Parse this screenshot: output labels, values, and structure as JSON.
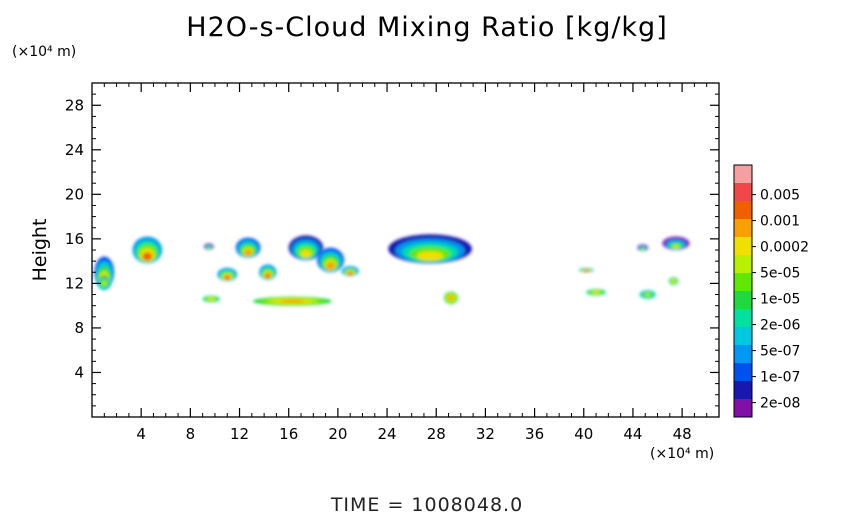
{
  "chart_data": {
    "type": "heatmap",
    "title": "H2O-s-Cloud Mixing Ratio [kg/kg]",
    "xlabel": "",
    "ylabel": "Height",
    "x_units": "(×10⁴ m)",
    "y_units": "(×10⁴ m)",
    "xlim": [
      0,
      51
    ],
    "ylim": [
      0,
      30
    ],
    "x_ticks": [
      4,
      8,
      12,
      16,
      20,
      24,
      28,
      32,
      36,
      40,
      44,
      48
    ],
    "y_ticks": [
      4,
      8,
      12,
      16,
      20,
      24,
      28
    ],
    "x_tick_labels": [
      "4",
      "8",
      "12",
      "16",
      "20",
      "24",
      "28",
      "32",
      "36",
      "40",
      "44",
      "48"
    ],
    "y_tick_labels": [
      "4",
      "8",
      "12",
      "16",
      "20",
      "24",
      "28"
    ],
    "colorbar": {
      "levels": [
        "0.005",
        "0.001",
        "0.0002",
        "5e-05",
        "1e-05",
        "2e-06",
        "5e-07",
        "1e-07",
        "2e-08"
      ],
      "colors": [
        "#f4a0a0",
        "#f04848",
        "#f06000",
        "#f8a000",
        "#f0e000",
        "#b8f000",
        "#60e800",
        "#20d840",
        "#00e0a0",
        "#00c8e0",
        "#0098f0",
        "#0050f0",
        "#1818b0",
        "#8010a8"
      ]
    },
    "cloud_regions": [
      {
        "x": 1.0,
        "y": 13.0,
        "w": 1.6,
        "h": 2.8,
        "level": 3
      },
      {
        "x": 4.5,
        "y": 15.0,
        "w": 2.4,
        "h": 2.4,
        "level": 4
      },
      {
        "x": 9.5,
        "y": 15.3,
        "w": 0.8,
        "h": 0.6,
        "level": 1
      },
      {
        "x": 12.7,
        "y": 15.2,
        "w": 2.0,
        "h": 1.8,
        "level": 3
      },
      {
        "x": 11.0,
        "y": 12.8,
        "w": 1.6,
        "h": 1.2,
        "level": 4
      },
      {
        "x": 14.3,
        "y": 13.0,
        "w": 1.4,
        "h": 1.4,
        "level": 4
      },
      {
        "x": 17.4,
        "y": 15.2,
        "w": 2.8,
        "h": 2.2,
        "level": 2
      },
      {
        "x": 19.4,
        "y": 14.1,
        "w": 2.2,
        "h": 2.2,
        "level": 3
      },
      {
        "x": 21.0,
        "y": 13.1,
        "w": 1.4,
        "h": 0.9,
        "level": 4
      },
      {
        "x": 27.5,
        "y": 15.1,
        "w": 6.8,
        "h": 2.6,
        "level": 2
      },
      {
        "x": 40.2,
        "y": 13.2,
        "w": 1.2,
        "h": 0.4,
        "level": 5
      },
      {
        "x": 44.8,
        "y": 15.2,
        "w": 0.9,
        "h": 0.6,
        "level": 1
      },
      {
        "x": 47.5,
        "y": 15.6,
        "w": 2.2,
        "h": 1.2,
        "level": 1
      }
    ],
    "warm_regions": [
      {
        "x": 1.0,
        "y": 12.0,
        "w": 1.0,
        "h": 1.2,
        "level": 6
      },
      {
        "x": 9.7,
        "y": 10.6,
        "w": 1.4,
        "h": 0.6,
        "level": 7
      },
      {
        "x": 16.3,
        "y": 10.4,
        "w": 6.4,
        "h": 0.8,
        "level": 8
      },
      {
        "x": 29.2,
        "y": 10.7,
        "w": 1.1,
        "h": 1.1,
        "level": 8
      },
      {
        "x": 41.0,
        "y": 11.2,
        "w": 1.6,
        "h": 0.6,
        "level": 7
      },
      {
        "x": 45.2,
        "y": 11.0,
        "w": 1.3,
        "h": 0.8,
        "level": 6
      },
      {
        "x": 47.3,
        "y": 12.2,
        "w": 0.8,
        "h": 0.7,
        "level": 7
      }
    ]
  },
  "units_y": "(×10⁴ m)",
  "units_x": "(×10⁴ m)",
  "time_label": "TIME = 1008048.0"
}
